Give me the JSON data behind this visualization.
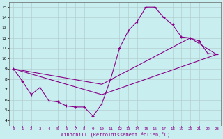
{
  "xlabel": "Windchill (Refroidissement éolien,°C)",
  "bg_color": "#c8eef0",
  "line_color": "#880088",
  "grid_color": "#b0c8c8",
  "xlim": [
    -0.5,
    23.5
  ],
  "ylim": [
    3.5,
    15.5
  ],
  "xticks": [
    0,
    1,
    2,
    3,
    4,
    5,
    6,
    7,
    8,
    9,
    10,
    11,
    12,
    13,
    14,
    15,
    16,
    17,
    18,
    19,
    20,
    21,
    22,
    23
  ],
  "yticks": [
    4,
    5,
    6,
    7,
    8,
    9,
    10,
    11,
    12,
    13,
    14,
    15
  ],
  "series1_x": [
    0,
    1,
    2,
    3,
    4,
    5,
    6,
    7,
    8,
    9,
    10,
    11,
    12,
    13,
    14,
    15,
    16,
    17,
    18,
    19,
    20,
    21,
    22,
    23
  ],
  "series1_y": [
    9.0,
    7.8,
    6.5,
    7.2,
    5.9,
    5.8,
    5.4,
    5.3,
    5.3,
    4.4,
    5.6,
    8.0,
    11.0,
    12.7,
    13.6,
    15.0,
    15.0,
    14.0,
    13.3,
    12.1,
    12.0,
    11.7,
    10.5,
    10.4
  ],
  "series2_x": [
    0,
    10,
    23
  ],
  "series2_y": [
    9.0,
    6.5,
    10.4
  ],
  "series3_x": [
    0,
    10,
    20,
    23
  ],
  "series3_y": [
    9.0,
    7.5,
    12.0,
    10.4
  ]
}
